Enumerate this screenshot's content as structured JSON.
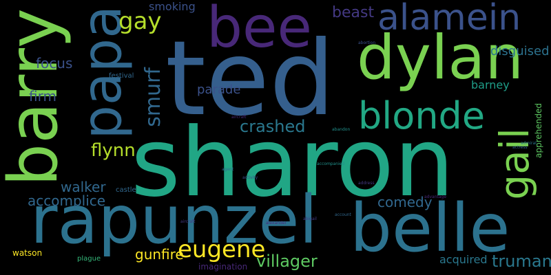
{
  "words": {
    "sharon": {
      "text": "sharon",
      "color": "#21a685"
    },
    "ted": {
      "text": "ted",
      "color": "#355f8d"
    },
    "rapunzel": {
      "text": "rapunzel",
      "color": "#2c728e"
    },
    "belle": {
      "text": "belle",
      "color": "#2c728e"
    },
    "barry": {
      "text": "barry",
      "color": "#7ad151"
    },
    "dylan": {
      "text": "dylan",
      "color": "#7ad151"
    },
    "bee": {
      "text": "bee",
      "color": "#482878"
    },
    "papa": {
      "text": "papa",
      "color": "#31688e"
    },
    "alamein": {
      "text": "alamein",
      "color": "#3b528b"
    },
    "blonde": {
      "text": "blonde",
      "color": "#22a884"
    },
    "gail": {
      "text": "gail",
      "color": "#7ad151"
    },
    "smurf": {
      "text": "smurf",
      "color": "#31688e"
    },
    "eugene": {
      "text": "eugene",
      "color": "#fde725"
    },
    "gay": {
      "text": "gay",
      "color": "#b5de2b"
    },
    "beast": {
      "text": "beast",
      "color": "#443983"
    },
    "villager": {
      "text": "villager",
      "color": "#5ec962"
    },
    "comedy": {
      "text": "comedy",
      "color": "#31688e"
    },
    "flynn": {
      "text": "flynn",
      "color": "#b5de2b"
    },
    "truman": {
      "text": "truman",
      "color": "#2a788e"
    },
    "crashed": {
      "text": "crashed",
      "color": "#2a788e"
    },
    "gunfire": {
      "text": "gunfire",
      "color": "#fde725"
    },
    "walker": {
      "text": "walker",
      "color": "#31688e"
    },
    "accomplice": {
      "text": "accomplice",
      "color": "#31688e"
    },
    "focus": {
      "text": "focus",
      "color": "#3b528b"
    },
    "firm": {
      "text": "firm",
      "color": "#3b528b"
    },
    "parade": {
      "text": "parade",
      "color": "#3b528b"
    },
    "disguised": {
      "text": "disguised",
      "color": "#2c728e"
    },
    "barney": {
      "text": "barney",
      "color": "#1f9e89"
    },
    "acquired": {
      "text": "acquired",
      "color": "#2a788e"
    },
    "smoking": {
      "text": "smoking",
      "color": "#3b528b"
    },
    "watson": {
      "text": "watson",
      "color": "#fde725"
    },
    "apprehended": {
      "text": "apprehended",
      "color": "#5ec962"
    },
    "imagination": {
      "text": "imagination",
      "color": "#482878"
    },
    "plague": {
      "text": "plague",
      "color": "#35b779"
    },
    "festival": {
      "text": "festival",
      "color": "#31688e"
    },
    "castle": {
      "text": "castle",
      "color": "#31688e"
    },
    "abandon": {
      "text": "abandon",
      "color": "#21918c"
    },
    "abigail": {
      "text": "abigail",
      "color": "#443983"
    },
    "accompanied": {
      "text": "accompanied",
      "color": "#21918c"
    },
    "abortion": {
      "text": "abortion",
      "color": "#3b528b"
    },
    "activity": {
      "text": "activity",
      "color": "#3b528b"
    },
    "agent": {
      "text": "agent",
      "color": "#31688e"
    },
    "alexander": {
      "text": "alexander",
      "color": "#482878"
    },
    "aircraft": {
      "text": "aircraft",
      "color": "#482878"
    },
    "actress": {
      "text": "actress",
      "color": "#31688e"
    },
    "admiral": {
      "text": "admiral",
      "color": "#2a788e"
    },
    "advantage": {
      "text": "advantage",
      "color": "#482878"
    },
    "account": {
      "text": "account",
      "color": "#31688e"
    },
    "aircraft2": {
      "text": "aircraft",
      "color": "#443983"
    },
    "address": {
      "text": "address",
      "color": "#443983"
    }
  }
}
